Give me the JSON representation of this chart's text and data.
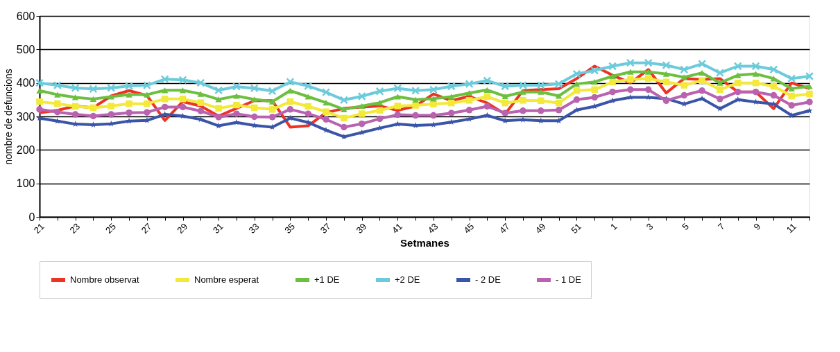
{
  "chart_data": {
    "type": "line",
    "xlabel": "Setmanes",
    "ylabel": "nombre de defuncions",
    "categories": [
      "21",
      null,
      "23",
      null,
      "25",
      null,
      "27",
      null,
      "29",
      null,
      "31",
      null,
      "33",
      null,
      "35",
      null,
      "37",
      null,
      "39",
      null,
      "41",
      null,
      "43",
      null,
      "45",
      null,
      "47",
      null,
      "49",
      null,
      "51",
      null,
      "1",
      null,
      "3",
      null,
      "5",
      null,
      "7",
      null,
      "9",
      null,
      "11",
      null
    ],
    "ylim": [
      0,
      600
    ],
    "yticks": [
      0,
      100,
      200,
      300,
      400,
      500,
      600
    ],
    "grid": "y",
    "legend": "bottom",
    "series": [
      {
        "name": "Nombre observat",
        "color": "#ee3224",
        "marker": "none",
        "values": [
          311,
          318,
          331,
          326,
          361,
          377,
          362,
          288,
          344,
          331,
          301,
          324,
          347,
          347,
          268,
          272,
          311,
          324,
          328,
          331,
          318,
          331,
          367,
          347,
          360,
          340,
          307,
          377,
          380,
          383,
          413,
          450,
          423,
          400,
          440,
          370,
          413,
          410,
          413,
          373,
          373,
          323,
          400,
          383
        ]
      },
      {
        "name": "Nombre esperat",
        "color": "#f2e93a",
        "marker": "square",
        "values": [
          344,
          338,
          330,
          326,
          331,
          338,
          338,
          352,
          352,
          341,
          324,
          334,
          326,
          321,
          344,
          330,
          314,
          295,
          308,
          318,
          331,
          333,
          337,
          340,
          348,
          359,
          340,
          348,
          347,
          340,
          377,
          380,
          403,
          410,
          413,
          403,
          393,
          407,
          380,
          400,
          400,
          390,
          361,
          367
        ]
      },
      {
        "name": "+1 DE",
        "color": "#6cbf3f",
        "marker": "triangle",
        "values": [
          377,
          365,
          357,
          352,
          359,
          365,
          365,
          378,
          378,
          367,
          351,
          361,
          351,
          344,
          377,
          359,
          341,
          321,
          331,
          341,
          359,
          350,
          353,
          359,
          370,
          379,
          360,
          373,
          373,
          361,
          397,
          403,
          420,
          433,
          433,
          427,
          417,
          430,
          400,
          423,
          427,
          413,
          383,
          390
        ]
      },
      {
        "name": "+2 DE",
        "color": "#6ccbdb",
        "marker": "cross",
        "values": [
          400,
          393,
          385,
          382,
          385,
          391,
          393,
          411,
          409,
          400,
          378,
          389,
          384,
          376,
          403,
          391,
          372,
          349,
          360,
          375,
          384,
          377,
          380,
          390,
          397,
          407,
          390,
          393,
          393,
          397,
          427,
          437,
          450,
          460,
          460,
          453,
          440,
          457,
          430,
          450,
          450,
          440,
          413,
          420
        ]
      },
      {
        "name": "- 2 DE",
        "color": "#3a55a8",
        "marker": "star",
        "values": [
          295,
          286,
          277,
          275,
          278,
          286,
          288,
          306,
          301,
          291,
          272,
          282,
          273,
          268,
          295,
          282,
          259,
          239,
          252,
          265,
          277,
          273,
          275,
          283,
          292,
          303,
          287,
          290,
          287,
          287,
          319,
          330,
          347,
          357,
          357,
          353,
          337,
          353,
          323,
          350,
          343,
          337,
          303,
          317
        ]
      },
      {
        "name": "- 1 DE",
        "color": "#b862b0",
        "marker": "circle",
        "values": [
          321,
          313,
          306,
          301,
          306,
          311,
          312,
          328,
          328,
          316,
          298,
          308,
          299,
          298,
          321,
          308,
          291,
          268,
          278,
          293,
          305,
          303,
          303,
          310,
          319,
          330,
          310,
          317,
          317,
          319,
          350,
          357,
          373,
          380,
          380,
          347,
          363,
          377,
          352,
          373,
          373,
          363,
          333,
          343
        ]
      }
    ]
  }
}
